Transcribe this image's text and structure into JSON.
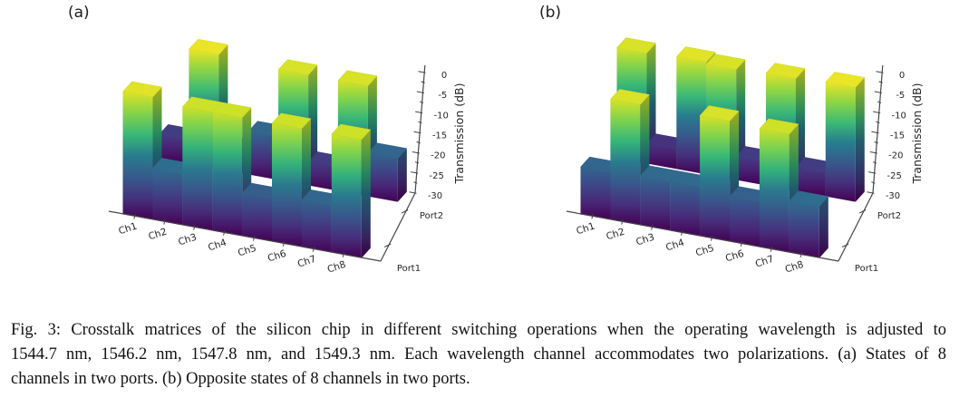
{
  "panel_labels": {
    "a": "(a)",
    "b": "(b)"
  },
  "axis": {
    "z_label": "Transmission (dB)",
    "z_tick_labels": [
      "0",
      "-5",
      "-10",
      "-15",
      "-20",
      "-25",
      "-30"
    ],
    "channels": [
      "Ch1",
      "Ch2",
      "Ch3",
      "Ch4",
      "Ch5",
      "Ch6",
      "Ch7",
      "Ch8"
    ],
    "ports": [
      "Port1",
      "Port2"
    ]
  },
  "chart_data": [
    {
      "type": "bar",
      "projection": "3d",
      "panel": "(a)",
      "title": "States of 8 channels in two ports",
      "categories": [
        "Ch1",
        "Ch2",
        "Ch3",
        "Ch4",
        "Ch5",
        "Ch6",
        "Ch7",
        "Ch8"
      ],
      "series": [
        {
          "name": "Port1",
          "values": [
            -1.5,
            -18,
            -2.5,
            -2.5,
            -20,
            -2.5,
            -19,
            -2.5
          ]
        },
        {
          "name": "Port2",
          "values": [
            -24,
            -1,
            -24,
            -19,
            -2,
            -24,
            -2,
            -19
          ]
        }
      ],
      "zlabel": "Transmission (dB)",
      "zlim": [
        -30,
        0
      ],
      "z_ticks": [
        0,
        -5,
        -10,
        -15,
        -20,
        -25,
        -30
      ],
      "colormap": "viridis",
      "grid": false,
      "legend": false
    },
    {
      "type": "bar",
      "projection": "3d",
      "panel": "(b)",
      "title": "Opposite states of 8 channels in two ports",
      "categories": [
        "Ch1",
        "Ch2",
        "Ch3",
        "Ch4",
        "Ch5",
        "Ch6",
        "Ch7",
        "Ch8"
      ],
      "series": [
        {
          "name": "Port1",
          "values": [
            -19,
            -2,
            -18.5,
            -18.5,
            -2,
            -19.5,
            -2.5,
            -18
          ]
        },
        {
          "name": "Port2",
          "values": [
            -2,
            -25,
            -1.5,
            -2,
            -24,
            -1.5,
            -24,
            -1
          ]
        }
      ],
      "zlabel": "Transmission (dB)",
      "zlim": [
        -30,
        0
      ],
      "z_ticks": [
        0,
        -5,
        -10,
        -15,
        -20,
        -25,
        -30
      ],
      "colormap": "viridis",
      "grid": false,
      "legend": false
    }
  ],
  "caption": {
    "line1": "Fig. 3: Crosstalk matrices of the silicon chip in different switching operations when the operating wavelength is adjusted to",
    "line2": "1544.7 nm, 1546.2 nm, 1547.8 nm, and 1549.3 nm. Each wavelength channel accommodates two polarizations. (a) States of 8",
    "line3": "channels in two ports. (b) Opposite states of 8 channels in two ports."
  },
  "colors": {
    "viridis_anchors": [
      "#440154",
      "#482878",
      "#3e4989",
      "#31688e",
      "#26828e",
      "#35b779",
      "#6ece58",
      "#b5de2b",
      "#fde725"
    ],
    "axis_line": "#454545",
    "text": "#262626",
    "background": "#ffffff"
  }
}
